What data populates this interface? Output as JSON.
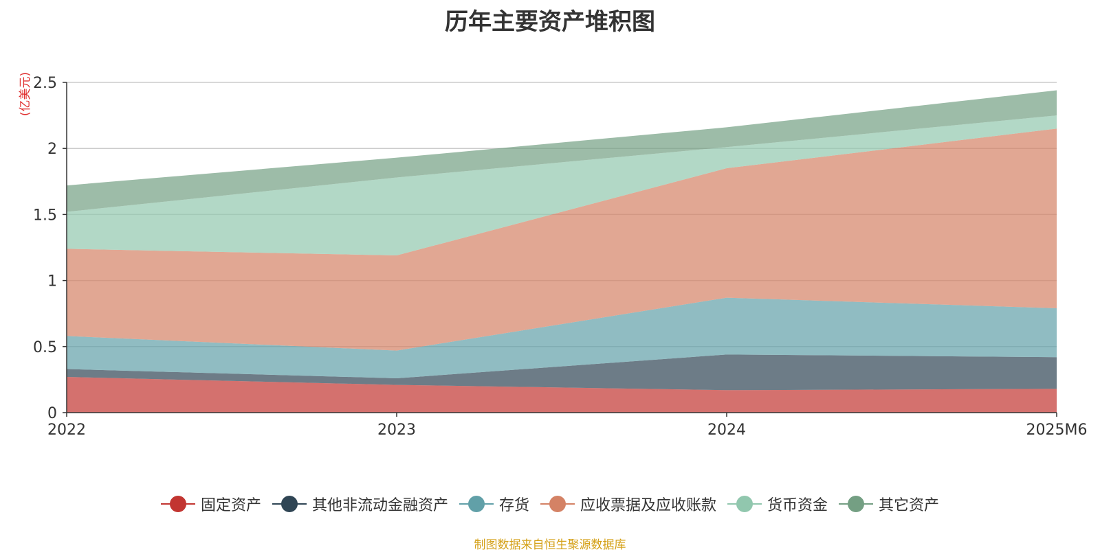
{
  "chart_data": {
    "type": "area",
    "stacked": true,
    "title": "历年主要资产堆积图",
    "ylabel": "(亿美元)",
    "xlabel": "",
    "categories": [
      "2022",
      "2023",
      "2024",
      "2025M6"
    ],
    "ylim": [
      0,
      2.5
    ],
    "yticks": [
      0,
      0.5,
      1,
      1.5,
      2,
      2.5
    ],
    "ytick_labels": [
      "0",
      "0.5",
      "1",
      "1.5",
      "2",
      "2.5"
    ],
    "grid": true,
    "legend_position": "bottom",
    "series": [
      {
        "name": "固定资产",
        "values": [
          0.27,
          0.21,
          0.17,
          0.18
        ],
        "color": "#c23531"
      },
      {
        "name": "其他非流动金融资产",
        "values": [
          0.06,
          0.05,
          0.27,
          0.24
        ],
        "color": "#2f4554"
      },
      {
        "name": "存货",
        "values": [
          0.25,
          0.21,
          0.43,
          0.37
        ],
        "color": "#61a0a8"
      },
      {
        "name": "应收票据及应收账款",
        "values": [
          0.66,
          0.72,
          0.98,
          1.36
        ],
        "color": "#d48265"
      },
      {
        "name": "货币资金",
        "values": [
          0.28,
          0.59,
          0.16,
          0.1
        ],
        "color": "#91c7ae"
      },
      {
        "name": "其它资产",
        "values": [
          0.2,
          0.15,
          0.15,
          0.19
        ],
        "color": "#749f83"
      }
    ]
  },
  "footer": {
    "source": "制图数据来自恒生聚源数据库"
  }
}
